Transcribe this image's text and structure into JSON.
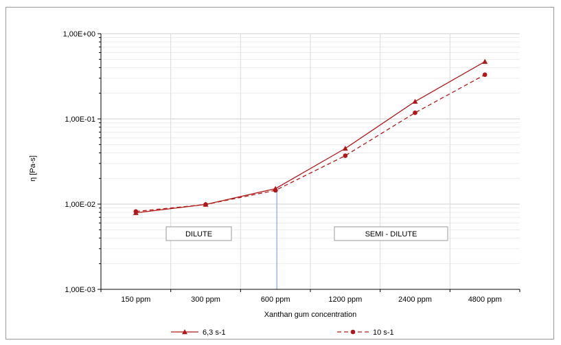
{
  "chart_data": {
    "type": "line",
    "title": "",
    "xlabel": "Xanthan gum concentration",
    "ylabel": "η [Pa-s]",
    "y_scale": "log",
    "ylim": [
      0.001,
      1
    ],
    "y_tick_labels": [
      "1,00E-03",
      "1,00E-02",
      "1,00E-01",
      "1,00E+00"
    ],
    "categories": [
      "150 ppm",
      "300 ppm",
      "600 ppm",
      "1200 ppm",
      "2400 ppm",
      "4800 ppm"
    ],
    "series": [
      {
        "name": "6,3 s-1",
        "marker": "triangle",
        "line_style": "solid",
        "color": "#b01818",
        "values": [
          0.0079,
          0.0099,
          0.0152,
          0.045,
          0.16,
          0.47
        ]
      },
      {
        "name": "10  s-1",
        "marker": "circle",
        "line_style": "dashed",
        "color": "#b01818",
        "values": [
          0.0082,
          0.0099,
          0.0145,
          0.037,
          0.118,
          0.33
        ]
      }
    ],
    "regions": [
      {
        "label": "DILUTE"
      },
      {
        "label": "SEMI - DILUTE"
      }
    ],
    "divider_between": [
      "600 ppm",
      "1200 ppm"
    ],
    "divider_color": "#5b9bd5",
    "grid": true,
    "legend_position": "bottom"
  }
}
